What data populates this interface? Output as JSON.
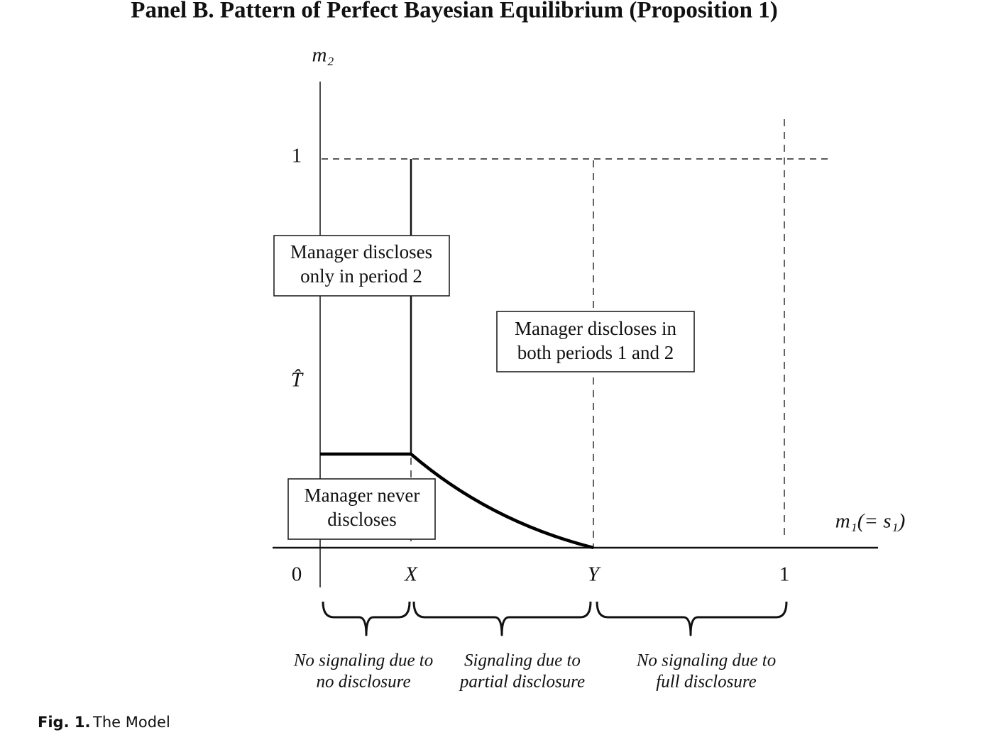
{
  "title": "Panel B. Pattern of Perfect Bayesian Equilibrium (Proposition 1)",
  "y_axis": {
    "label": "m₂",
    "ticks": [
      "1",
      "T̂"
    ]
  },
  "x_axis": {
    "label": "m₁(= s₁)",
    "ticks": [
      "0",
      "X",
      "Y",
      "1"
    ]
  },
  "regions": [
    {
      "lines": [
        "Manager discloses",
        "only in period 2"
      ]
    },
    {
      "lines": [
        "Manager discloses in",
        "both periods 1 and 2"
      ]
    },
    {
      "lines": [
        "Manager never",
        "discloses"
      ]
    }
  ],
  "braces": [
    {
      "lines": [
        "No signaling due to",
        "no disclosure"
      ]
    },
    {
      "lines": [
        "Signaling due to",
        "partial disclosure"
      ]
    },
    {
      "lines": [
        "No signaling due to",
        "full disclosure"
      ]
    }
  ],
  "caption": {
    "label": "Fig. 1.",
    "text": "The Model"
  }
}
